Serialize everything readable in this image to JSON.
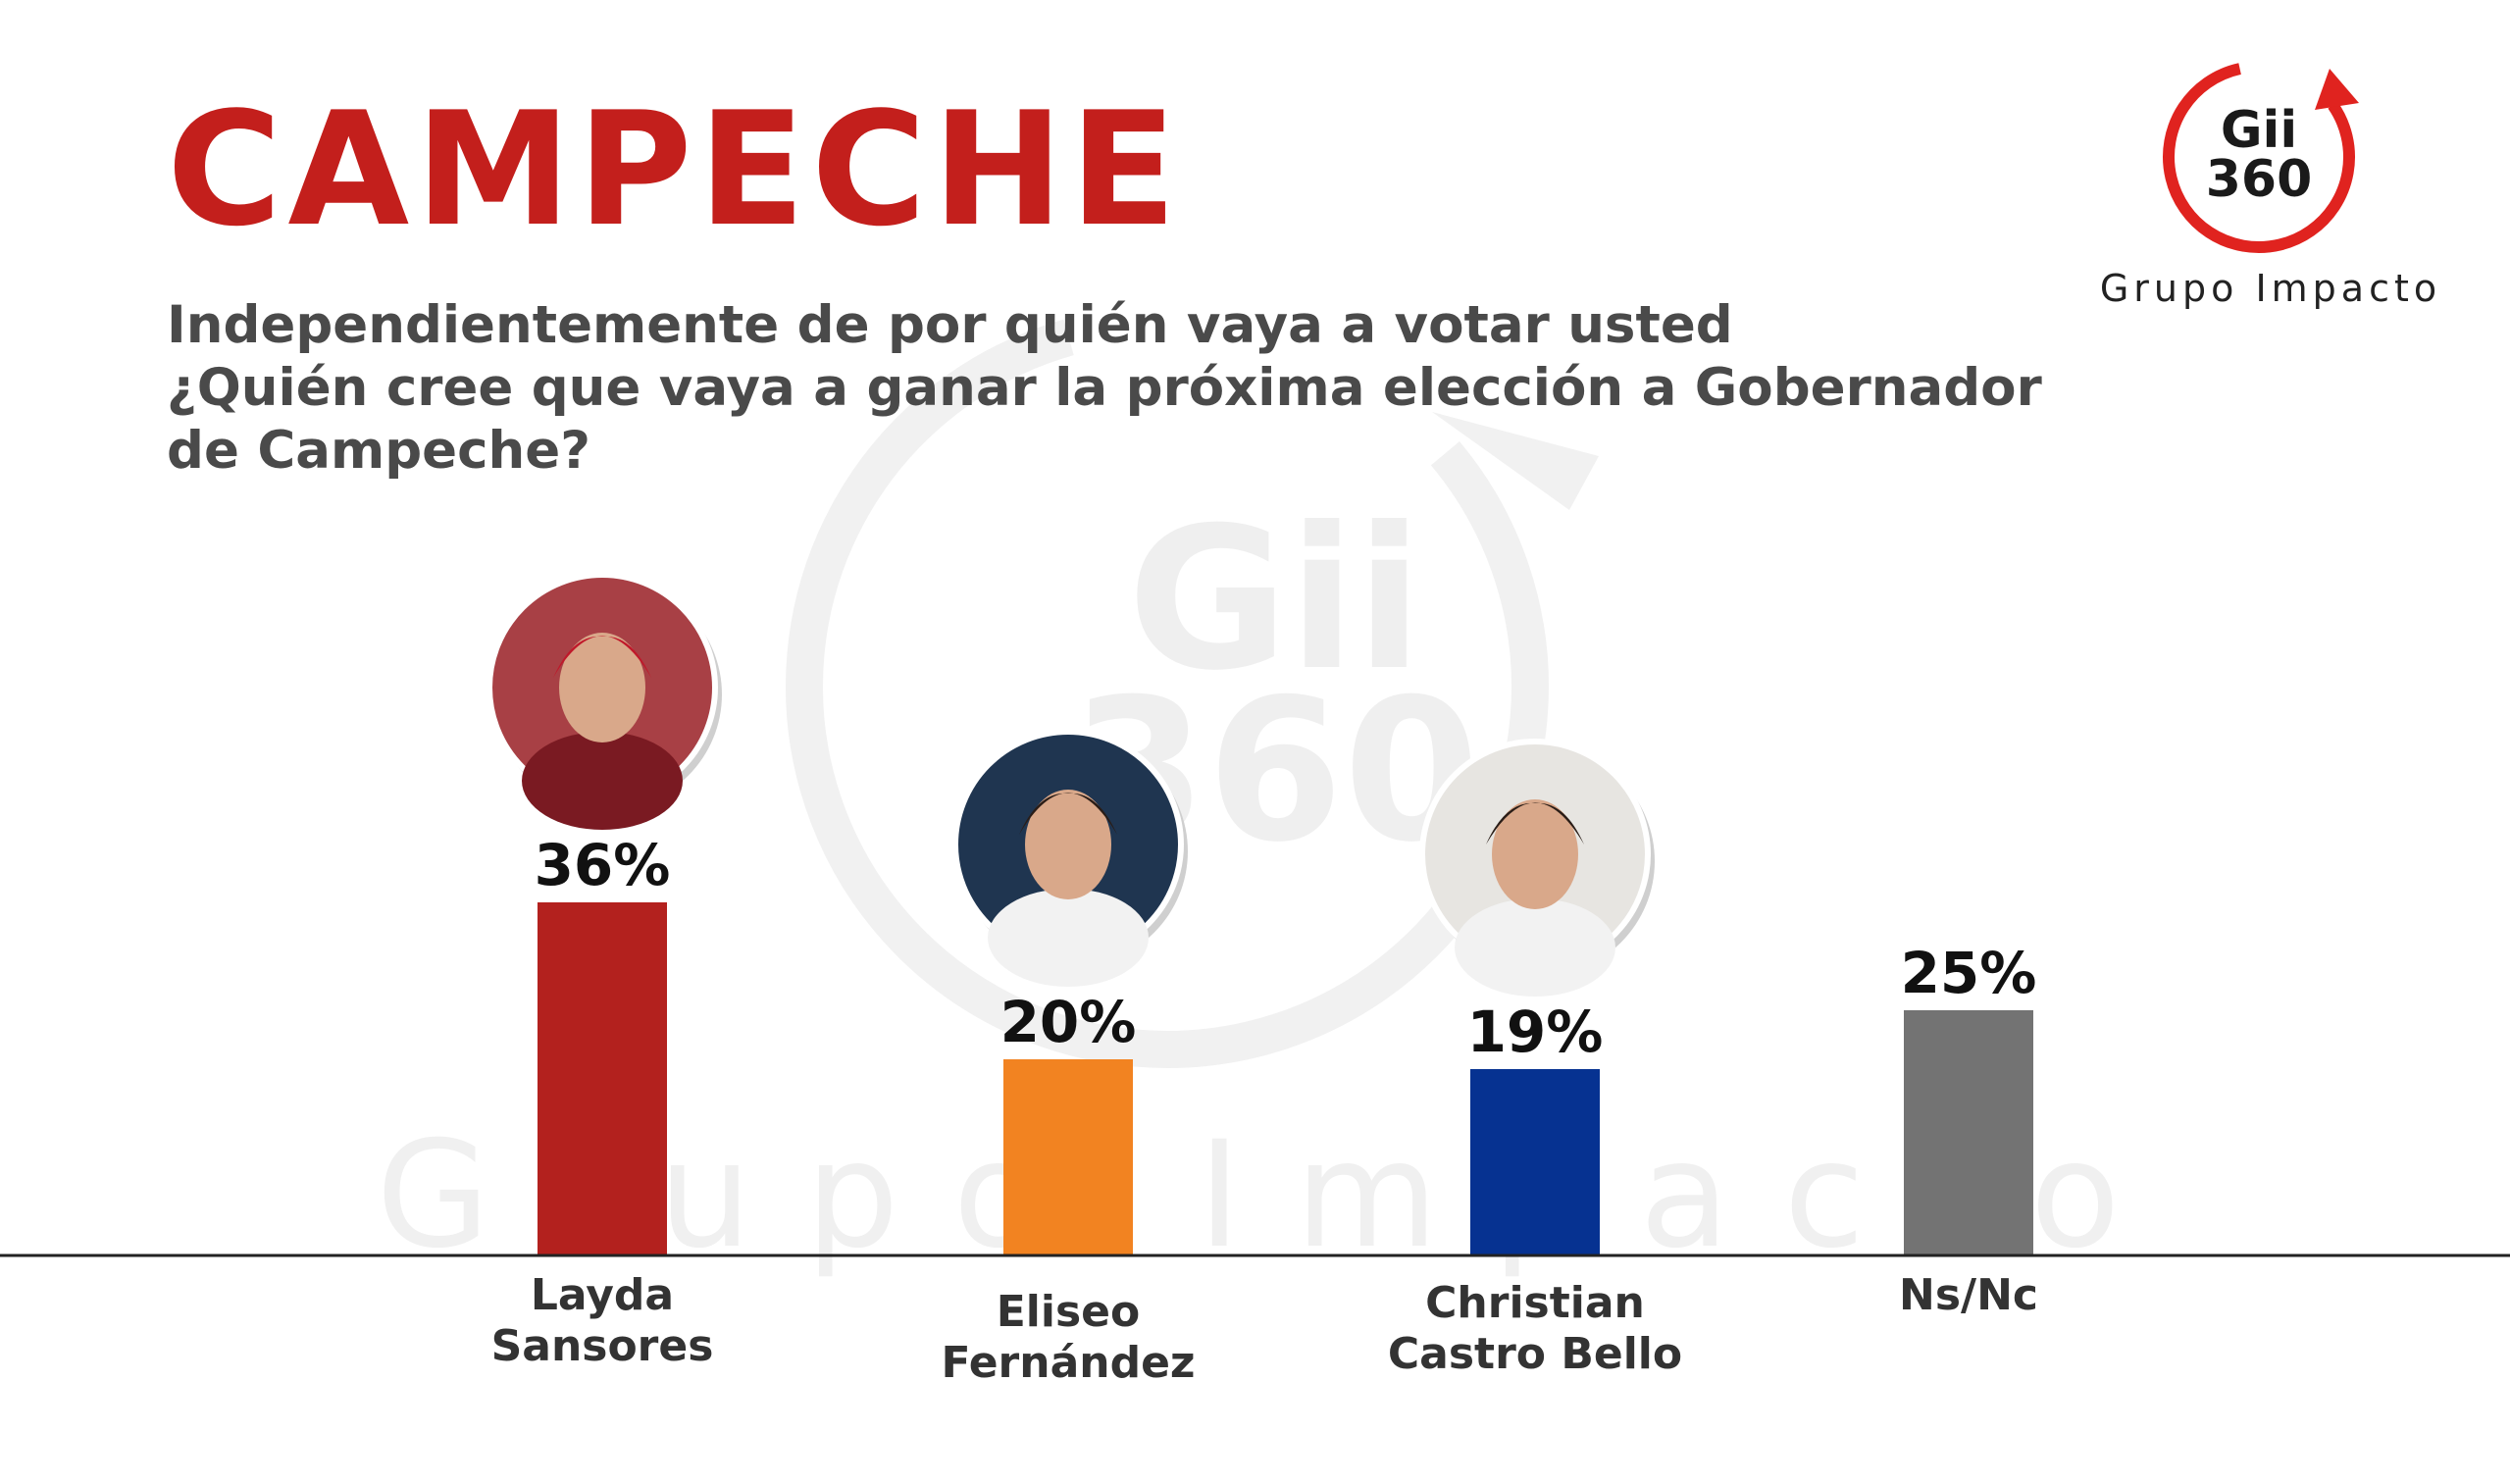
{
  "header": {
    "title": "CAMPECHE",
    "question_lines": [
      "Independientemente de por quién vaya a votar usted",
      "¿Quién cree  que vaya a ganar la próxima elección a Gobernador",
      "de Campeche?"
    ]
  },
  "logo": {
    "line1": "Gii",
    "line2": "360",
    "tagline": "Grupo Impacto",
    "icon": "gii360-circular-arrow-logo",
    "color": "#e0231f"
  },
  "watermark": {
    "line1": "Gii",
    "line2": "360",
    "text": "Grupo Impacto"
  },
  "chart_data": {
    "type": "bar",
    "categories": [
      [
        "Layda",
        "Sansores"
      ],
      [
        "Eliseo",
        "Fernández"
      ],
      [
        "Christian",
        "Castro Bello"
      ],
      [
        "Ns/Nc"
      ]
    ],
    "values": [
      36,
      20,
      19,
      25
    ],
    "value_labels": [
      "36%",
      "20%",
      "19%",
      "25%"
    ],
    "colors": [
      "#b3211e",
      "#f28321",
      "#063291",
      "#737373"
    ],
    "photos": [
      "candidate-photo",
      "candidate-photo",
      "candidate-photo",
      null
    ],
    "unit": "%",
    "ylim": [
      0,
      40
    ],
    "grid": false,
    "legend": "none"
  }
}
